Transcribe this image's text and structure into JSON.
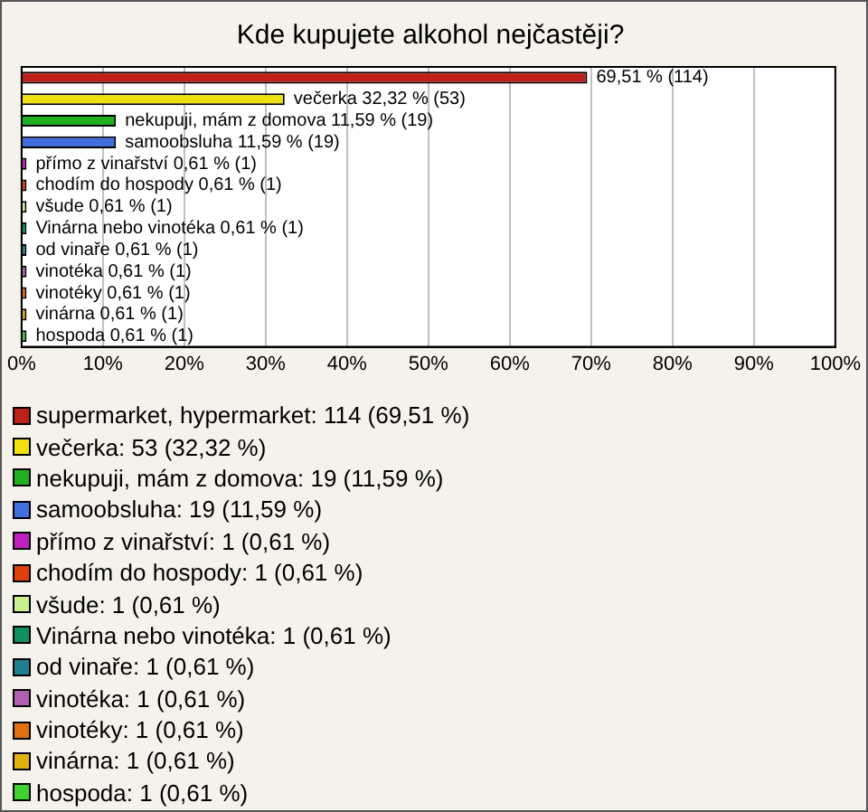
{
  "chart_data": {
    "type": "bar",
    "orientation": "horizontal",
    "title": "Kde kupujete alkohol nejčastěji?",
    "categories": [
      null,
      null,
      null,
      null,
      null,
      null,
      null,
      null,
      null,
      null,
      null,
      null,
      null
    ],
    "values": [
      69.51,
      32.32,
      11.59,
      11.59,
      0.61,
      0.61,
      0.61,
      0.61,
      0.61,
      0.61,
      0.61,
      0.61,
      0.61
    ],
    "colors": [
      "#c0201a",
      "#f0e010",
      "#20b020",
      "#4070e0",
      "#c020c0",
      "#e04010",
      "#c8f090",
      "#109060",
      "#208090",
      "#b060b0",
      "#e07010",
      "#e0b010",
      "#40d030"
    ],
    "value_labels": [
      "69,51 % (114)",
      "večerka 32,32 % (53)",
      "nekupuji, mám z domova 11,59 % (19)",
      "samoobsluha 11,59 % (19)",
      "přímo z vinařství 0,61 % (1)",
      "chodím do hospody 0,61 % (1)",
      "všude 0,61 % (1)",
      "Vinárna nebo vinotéka 0,61 % (1)",
      "od vinaře 0,61 % (1)",
      "vinotéka 0,61 % (1)",
      "vinotéky 0,61 % (1)",
      "vinárna 0,61 % (1)",
      "hospoda 0,61 % (1)"
    ],
    "xlim": [
      0,
      100
    ],
    "xticks": [
      {
        "value": 0,
        "label": "0%"
      },
      {
        "value": 10,
        "label": "10%"
      },
      {
        "value": 20,
        "label": "20%"
      },
      {
        "value": 30,
        "label": "30%"
      },
      {
        "value": 40,
        "label": "40%"
      },
      {
        "value": 50,
        "label": "50%"
      },
      {
        "value": 60,
        "label": "60%"
      },
      {
        "value": 70,
        "label": "70%"
      },
      {
        "value": 80,
        "label": "80%"
      },
      {
        "value": 90,
        "label": "90%"
      },
      {
        "value": 100,
        "label": "100%"
      }
    ],
    "grid": "x",
    "tick_labels": "x",
    "annotations": [
      "supermarket, hypermarket: 114 (69,51 %)",
      "večerka: 53 (32,32 %)",
      "nekupuji, mám z domova: 19 (11,59 %)",
      "samoobsluha: 19 (11,59 %)",
      "přímo z vinařství: 1 (0,61 %)",
      "chodím do hospody: 1 (0,61 %)",
      "všude: 1 (0,61 %)",
      "Vinárna nebo vinotéka: 1 (0,61 %)",
      "od vinaře: 1 (0,61 %)",
      "vinotéka: 1 (0,61 %)",
      "vinotéky: 1 (0,61 %)",
      "vinárna: 1 (0,61 %)",
      "hospoda: 1 (0,61 %)"
    ]
  }
}
